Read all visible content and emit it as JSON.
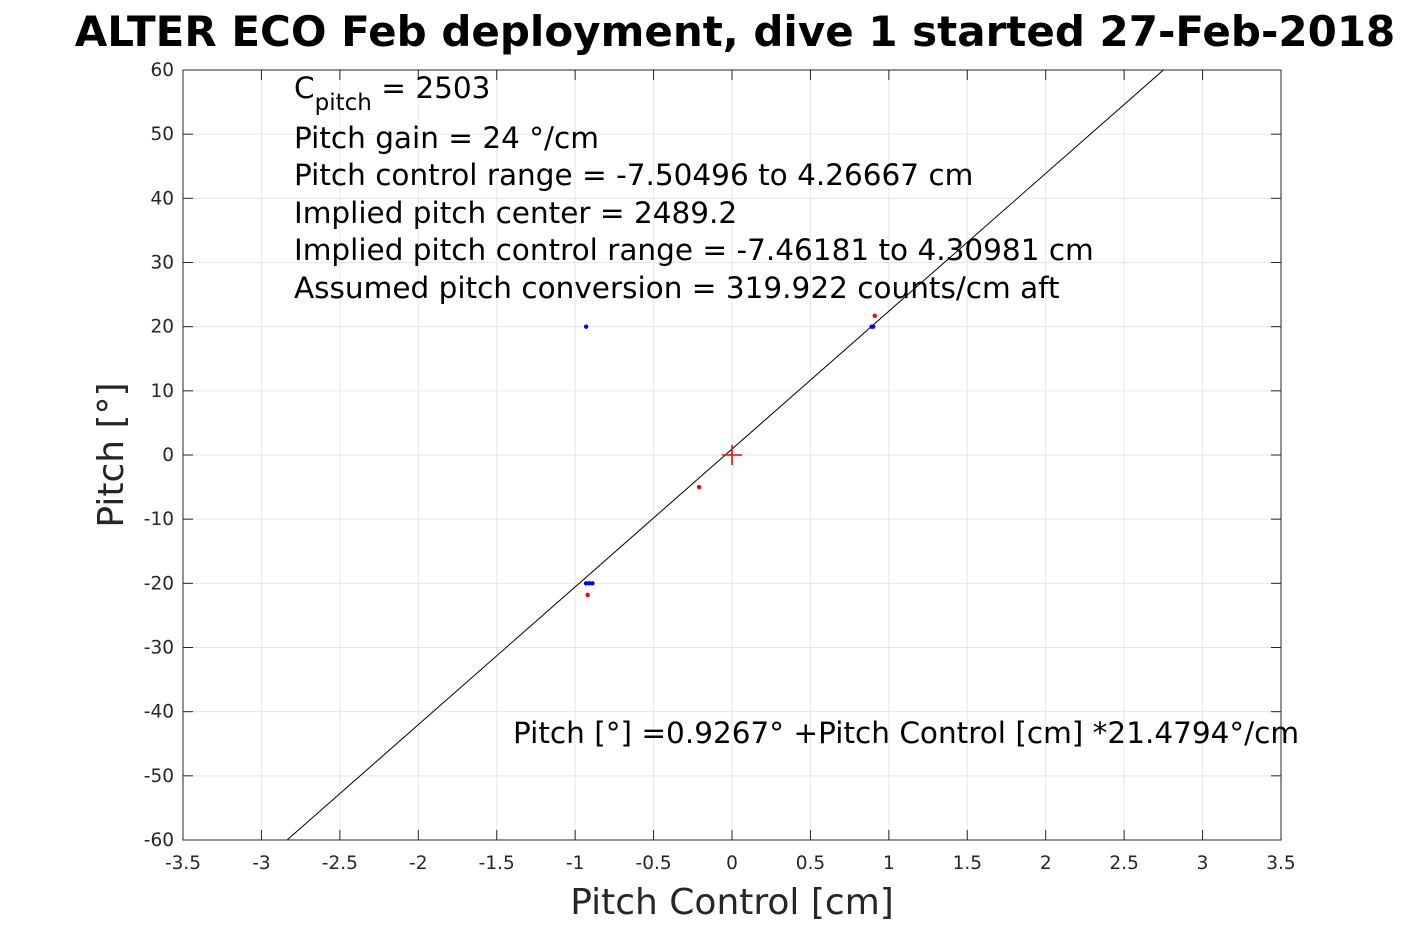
{
  "chart_data": {
    "type": "scatter",
    "title": "ALTER ECO Feb deployment, dive 1 started 27-Feb-2018",
    "xlabel": "Pitch Control [cm]",
    "ylabel": "Pitch [°]",
    "xlim": [
      -3.5,
      3.5
    ],
    "ylim": [
      -60,
      60
    ],
    "xticks": [
      -3.5,
      -3,
      -2.5,
      -2,
      -1.5,
      -1,
      -0.5,
      0,
      0.5,
      1,
      1.5,
      2,
      2.5,
      3,
      3.5
    ],
    "yticks": [
      -60,
      -50,
      -40,
      -30,
      -20,
      -10,
      0,
      10,
      20,
      30,
      40,
      50,
      60
    ],
    "grid": true,
    "colors": {
      "red": "#ff0000",
      "blue": "#0000ff",
      "fit": "#000000",
      "text": "#262626"
    },
    "series": [
      {
        "color": "red",
        "marker": "dot",
        "points": [
          [
            -0.92,
            -21.8
          ],
          [
            -0.21,
            -5.0
          ],
          [
            0.91,
            21.7
          ]
        ]
      },
      {
        "color": "blue",
        "marker": "dot",
        "points": [
          [
            -0.93,
            20.0
          ],
          [
            -0.93,
            -20.0
          ],
          [
            -0.91,
            -20.0
          ],
          [
            -0.89,
            -20.0
          ],
          [
            0.89,
            20.0
          ],
          [
            0.9,
            20.0
          ]
        ]
      },
      {
        "color": "red",
        "marker": "plus",
        "points": [
          [
            0,
            0
          ]
        ]
      }
    ],
    "fit_line": {
      "intercept": 0.9267,
      "slope": 21.4794
    },
    "annotations": {
      "cpitch_base": "C",
      "cpitch_sub": "pitch",
      "cpitch_value": " = 2503",
      "pitch_gain": "Pitch gain = 24 °/cm",
      "control_range": "Pitch control range = -7.50496 to 4.26667 cm",
      "implied_center": "Implied pitch center = 2489.2",
      "implied_range": "Implied pitch control range = -7.46181 to 4.30981 cm",
      "conversion": "Assumed pitch conversion = 319.922 counts/cm aft",
      "fit_equation": "Pitch [°] =0.9267° +Pitch Control [cm] *21.4794°/cm"
    }
  }
}
